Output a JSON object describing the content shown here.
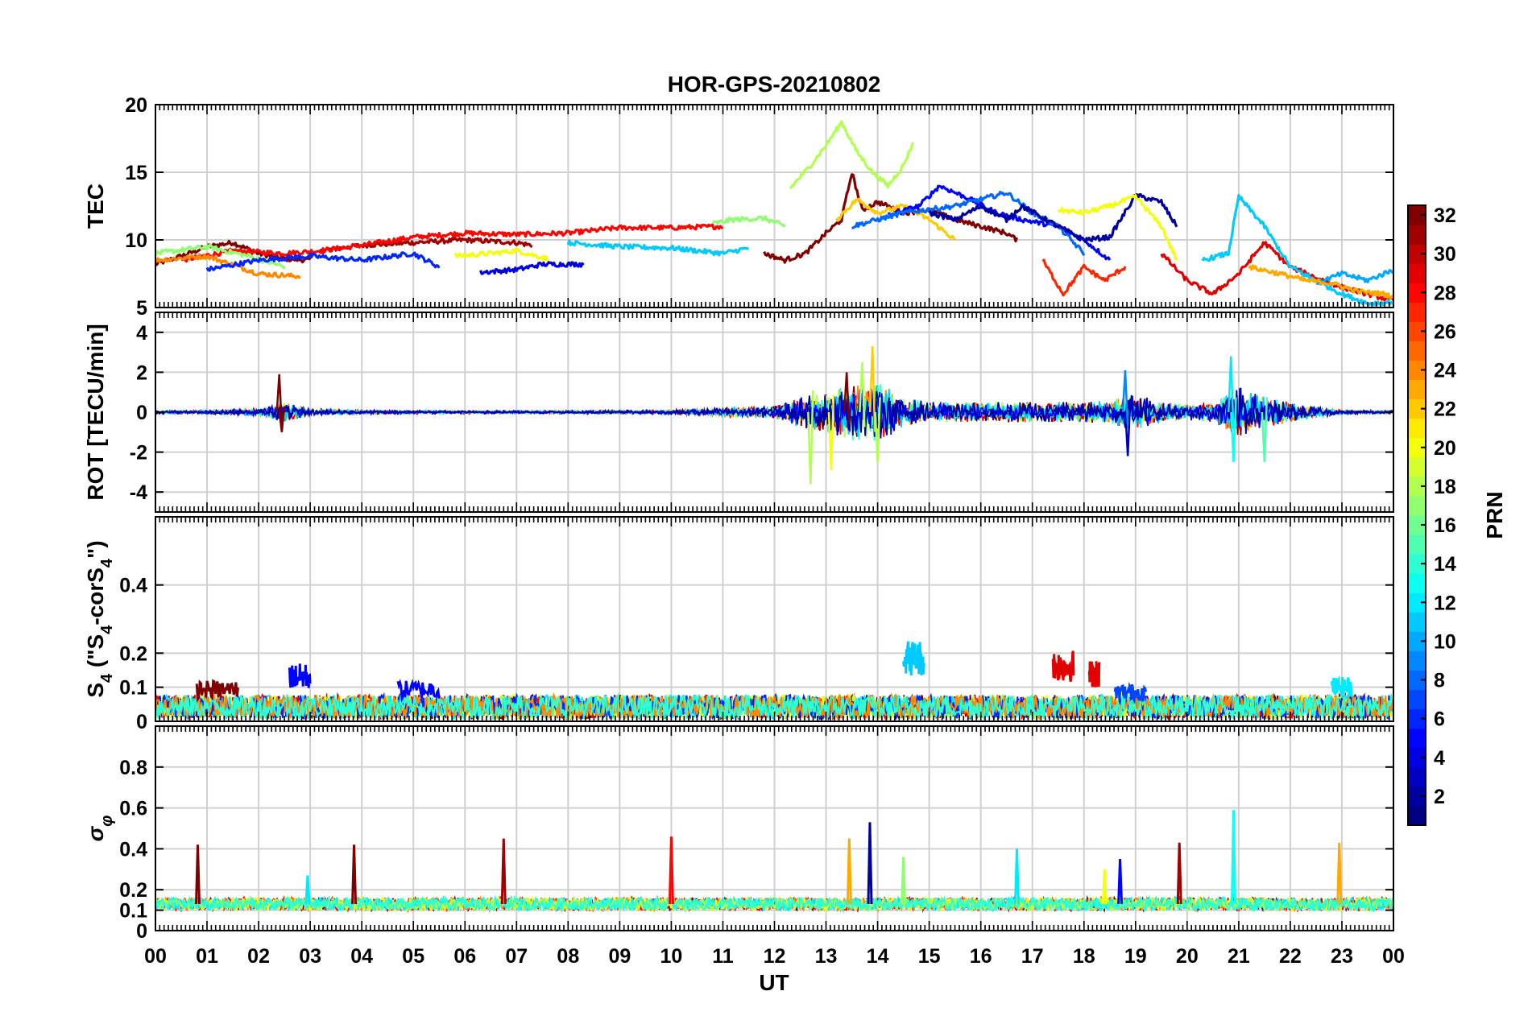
{
  "chart_data": {
    "title": "HOR-GPS-20210802",
    "type": "line",
    "x_axis": {
      "label": "UT",
      "ticks": [
        "00",
        "01",
        "02",
        "03",
        "04",
        "05",
        "06",
        "07",
        "08",
        "09",
        "10",
        "11",
        "12",
        "13",
        "14",
        "15",
        "16",
        "17",
        "18",
        "19",
        "20",
        "21",
        "22",
        "23",
        "00"
      ],
      "range_hours": [
        0,
        24
      ]
    },
    "grid": true,
    "panels": [
      {
        "id": "tec",
        "ylabel": "TEC",
        "ylim": [
          5,
          20
        ],
        "yticks": [
          5,
          10,
          15,
          20
        ],
        "series": [
          {
            "prn": 32,
            "x": [
              0.0,
              0.5,
              1.0,
              1.5,
              2.0,
              2.5,
              3.0
            ],
            "y": [
              8.2,
              8.8,
              9.5,
              9.8,
              9.0,
              8.6,
              8.5
            ]
          },
          {
            "prn": 31,
            "x": [
              3.2,
              4.0,
              5.0,
              6.0,
              7.0,
              7.3
            ],
            "y": [
              9.2,
              9.6,
              9.8,
              10.0,
              9.8,
              9.6
            ]
          },
          {
            "prn": 28,
            "x": [
              0.5,
              1.5,
              2.5,
              3.2,
              4.0,
              5.0,
              6.0,
              7.0,
              8.0,
              9.0,
              10.0,
              11.0
            ],
            "y": [
              8.5,
              9.2,
              9.0,
              9.2,
              9.6,
              10.2,
              10.5,
              10.4,
              10.5,
              10.9,
              10.9,
              11.0
            ]
          },
          {
            "prn": 24,
            "x": [
              0.0,
              1.0,
              2.0,
              2.8
            ],
            "y": [
              8.5,
              8.8,
              7.5,
              7.3
            ]
          },
          {
            "prn": 20,
            "x": [
              5.8,
              6.5,
              7.0,
              7.6
            ],
            "y": [
              8.8,
              9.0,
              9.2,
              8.6
            ]
          },
          {
            "prn": 17,
            "x": [
              0.0,
              1.0,
              1.8,
              2.5
            ],
            "y": [
              9.0,
              9.5,
              8.8,
              8.0
            ]
          },
          {
            "prn": 6,
            "x": [
              1.0,
              2.0,
              3.0,
              4.0,
              5.0,
              5.5
            ],
            "y": [
              7.8,
              8.5,
              8.8,
              8.5,
              9.0,
              8.0
            ]
          },
          {
            "prn": 4,
            "x": [
              6.3,
              7.0,
              7.5,
              8.0,
              8.3
            ],
            "y": [
              7.6,
              7.8,
              8.2,
              8.2,
              8.2
            ]
          },
          {
            "prn": 11,
            "x": [
              8.0,
              9.0,
              10.0,
              11.0,
              11.5
            ],
            "y": [
              9.8,
              9.5,
              9.4,
              9.0,
              9.4
            ]
          },
          {
            "prn": 17,
            "x": [
              10.8,
              11.2,
              11.8,
              12.2
            ],
            "y": [
              11.2,
              11.5,
              11.6,
              11.0
            ]
          },
          {
            "prn": 18,
            "x": [
              12.3,
              12.7,
              13.0,
              13.3,
              13.6,
              13.9,
              14.2,
              14.5,
              14.7
            ],
            "y": [
              13.8,
              15.5,
              17.0,
              18.7,
              16.5,
              15.0,
              14.0,
              15.5,
              17.3
            ]
          },
          {
            "prn": 32,
            "x": [
              11.8,
              12.2,
              12.6,
              13.0,
              13.3,
              13.5,
              13.7,
              14.0,
              14.5,
              15.0,
              15.5,
              16.0,
              16.5,
              16.7
            ],
            "y": [
              9.0,
              8.5,
              9.0,
              10.5,
              11.5,
              15.0,
              12.2,
              12.8,
              12.0,
              12.2,
              11.5,
              11.0,
              10.5,
              10.0
            ]
          },
          {
            "prn": 22,
            "x": [
              13.2,
              13.6,
              14.0,
              14.5,
              15.0,
              15.5
            ],
            "y": [
              11.5,
              13.0,
              12.0,
              12.5,
              11.5,
              10.0
            ]
          },
          {
            "prn": 5,
            "x": [
              14.2,
              14.8,
              15.2,
              15.8,
              16.3,
              16.8,
              17.5,
              18.0,
              18.5
            ],
            "y": [
              11.8,
              12.5,
              14.0,
              13.0,
              12.0,
              11.5,
              11.0,
              10.0,
              8.5
            ]
          },
          {
            "prn": 8,
            "x": [
              13.5,
              14.5,
              15.5,
              16.5,
              17.0,
              17.5,
              18.0
            ],
            "y": [
              11.0,
              12.0,
              12.5,
              13.5,
              12.0,
              11.0,
              9.0
            ]
          },
          {
            "prn": 2,
            "x": [
              15.0,
              15.5,
              16.0,
              16.5,
              16.8,
              17.5,
              18.0,
              18.5,
              19.0,
              19.5,
              19.8
            ],
            "y": [
              12.0,
              11.5,
              12.5,
              11.5,
              12.5,
              11.0,
              10.0,
              10.2,
              13.3,
              12.8,
              11.0
            ]
          },
          {
            "prn": 20,
            "x": [
              17.5,
              18.0,
              18.5,
              19.0,
              19.5,
              19.8
            ],
            "y": [
              12.2,
              12.0,
              12.5,
              13.2,
              11.0,
              8.5
            ]
          },
          {
            "prn": 27,
            "x": [
              17.2,
              17.6,
              18.0,
              18.4,
              18.8
            ],
            "y": [
              8.5,
              6.0,
              8.0,
              7.0,
              8.0
            ]
          },
          {
            "prn": 29,
            "x": [
              19.5,
              20.0,
              20.5,
              21.0,
              21.5,
              22.0,
              22.5,
              23.0,
              23.5,
              24.0
            ],
            "y": [
              9.0,
              7.0,
              6.0,
              7.5,
              9.8,
              8.0,
              7.2,
              6.5,
              6.0,
              5.5
            ]
          },
          {
            "prn": 11,
            "x": [
              20.3,
              20.8,
              21.0,
              21.5,
              22.0,
              22.5,
              23.0,
              23.5,
              24.0
            ],
            "y": [
              8.5,
              9.0,
              13.2,
              11.0,
              8.0,
              7.0,
              6.0,
              5.3,
              5.4
            ]
          },
          {
            "prn": 10,
            "x": [
              22.5,
              23.0,
              23.5,
              24.0
            ],
            "y": [
              6.8,
              7.5,
              7.0,
              7.8
            ]
          },
          {
            "prn": 23,
            "x": [
              21.2,
              21.8,
              22.3,
              22.8,
              23.3,
              23.8,
              24.0
            ],
            "y": [
              8.0,
              7.5,
              7.0,
              6.8,
              6.2,
              6.0,
              5.8
            ]
          }
        ]
      },
      {
        "id": "rot",
        "ylabel": "ROT [TECU/min]",
        "ylim": [
          -5,
          5
        ],
        "yticks": [
          -4,
          -2,
          0,
          2,
          4
        ],
        "envelope_hours": [
          0,
          1,
          2,
          2.5,
          3,
          4,
          6,
          8,
          10,
          11,
          12,
          12.5,
          13,
          13.5,
          14,
          14.5,
          15,
          16,
          17,
          18,
          18.5,
          19,
          19.5,
          20,
          20.5,
          21,
          21.5,
          22,
          22.5,
          23,
          24
        ],
        "envelope_amplitude": [
          0.15,
          0.2,
          0.3,
          1.0,
          0.3,
          0.2,
          0.15,
          0.15,
          0.2,
          0.4,
          0.6,
          1.5,
          2.0,
          2.8,
          3.0,
          1.5,
          1.0,
          1.0,
          1.0,
          1.0,
          1.2,
          1.8,
          1.0,
          0.8,
          1.0,
          2.5,
          1.5,
          1.0,
          0.5,
          0.2,
          0.15
        ],
        "spikes": [
          {
            "prn": 32,
            "x": 2.4,
            "y": 1.9
          },
          {
            "prn": 32,
            "x": 2.45,
            "y": -1.0
          },
          {
            "prn": 18,
            "x": 12.7,
            "y": -3.6
          },
          {
            "prn": 32,
            "x": 13.4,
            "y": 2.0
          },
          {
            "prn": 22,
            "x": 13.9,
            "y": 3.3
          },
          {
            "prn": 18,
            "x": 13.7,
            "y": 2.5
          },
          {
            "prn": 18,
            "x": 14.0,
            "y": -2.5
          },
          {
            "prn": 20,
            "x": 13.1,
            "y": -2.9
          },
          {
            "prn": 3,
            "x": 18.85,
            "y": -2.2
          },
          {
            "prn": 9,
            "x": 18.8,
            "y": 2.1
          },
          {
            "prn": 12,
            "x": 20.85,
            "y": 2.8
          },
          {
            "prn": 13,
            "x": 20.9,
            "y": -2.5
          },
          {
            "prn": 15,
            "x": 21.5,
            "y": -2.5
          }
        ]
      },
      {
        "id": "s4",
        "ylabel": "S_4 (\"S_4-corS_4\")",
        "ylim": [
          0,
          0.6
        ],
        "yticks": [
          0,
          0.1,
          0.2,
          0.4
        ],
        "baseline": 0.05,
        "bumps": [
          {
            "prn": 32,
            "x": [
              0.8,
              1.6
            ],
            "peak": 0.12
          },
          {
            "prn": 5,
            "x": [
              2.6,
              3.0
            ],
            "peak": 0.17
          },
          {
            "prn": 5,
            "x": [
              4.7,
              5.5
            ],
            "peak": 0.12
          },
          {
            "prn": 11,
            "x": [
              14.5,
              14.9
            ],
            "peak": 0.24
          },
          {
            "prn": 29,
            "x": [
              17.4,
              17.8
            ],
            "peak": 0.21
          },
          {
            "prn": 29,
            "x": [
              18.1,
              18.3
            ],
            "peak": 0.18
          },
          {
            "prn": 7,
            "x": [
              18.6,
              19.2
            ],
            "peak": 0.11
          },
          {
            "prn": 12,
            "x": [
              22.8,
              23.2
            ],
            "peak": 0.13
          }
        ]
      },
      {
        "id": "sigma",
        "ylabel": "σ_φ",
        "ylim": [
          0,
          1.0
        ],
        "yticks": [
          0,
          0.1,
          0.2,
          0.4,
          0.6,
          0.8
        ],
        "baseline": 0.13,
        "spikes": [
          {
            "prn": 32,
            "x": 0.82,
            "y": 0.42
          },
          {
            "prn": 32,
            "x": 3.85,
            "y": 0.42
          },
          {
            "prn": 12,
            "x": 2.95,
            "y": 0.27
          },
          {
            "prn": 31,
            "x": 6.75,
            "y": 0.45
          },
          {
            "prn": 28,
            "x": 10.0,
            "y": 0.46
          },
          {
            "prn": 23,
            "x": 13.45,
            "y": 0.45
          },
          {
            "prn": 2,
            "x": 13.85,
            "y": 0.53
          },
          {
            "prn": 17,
            "x": 14.5,
            "y": 0.36
          },
          {
            "prn": 12,
            "x": 16.7,
            "y": 0.4
          },
          {
            "prn": 20,
            "x": 18.4,
            "y": 0.3
          },
          {
            "prn": 5,
            "x": 18.7,
            "y": 0.35
          },
          {
            "prn": 31,
            "x": 19.85,
            "y": 0.43
          },
          {
            "prn": 13,
            "x": 20.9,
            "y": 0.59
          },
          {
            "prn": 23,
            "x": 22.95,
            "y": 0.43
          }
        ]
      }
    ],
    "colorbar": {
      "label": "PRN",
      "colormap": "jet",
      "range": [
        1,
        32
      ],
      "ticks": [
        2,
        4,
        6,
        8,
        10,
        12,
        14,
        16,
        18,
        20,
        22,
        24,
        26,
        28,
        30,
        32
      ]
    }
  }
}
